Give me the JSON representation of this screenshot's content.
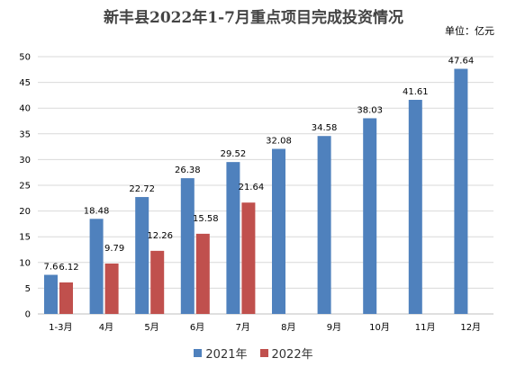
{
  "colors": {
    "series_2021": "#4F81BD",
    "series_2022": "#C0504D",
    "grid": "#D9D9D9",
    "axis": "#BFBFBF"
  },
  "chart_data": {
    "type": "bar",
    "title": "新丰县2022年1-7月重点项目完成投资情况",
    "unit_label": "单位：亿元",
    "categories": [
      "1-3月",
      "4月",
      "5月",
      "6月",
      "7月",
      "8月",
      "9月",
      "10月",
      "11月",
      "12月"
    ],
    "series": [
      {
        "name": "2021年",
        "values": [
          7.6,
          18.48,
          22.72,
          26.38,
          29.52,
          32.08,
          34.58,
          38.03,
          41.61,
          47.64
        ]
      },
      {
        "name": "2022年",
        "values": [
          6.12,
          9.79,
          12.26,
          15.58,
          21.64,
          null,
          null,
          null,
          null,
          null
        ]
      }
    ],
    "ylim": [
      0,
      50
    ],
    "yticks": [
      0,
      5,
      10,
      15,
      20,
      25,
      30,
      35,
      40,
      45,
      50
    ],
    "grid": true,
    "legend_position": "bottom"
  }
}
